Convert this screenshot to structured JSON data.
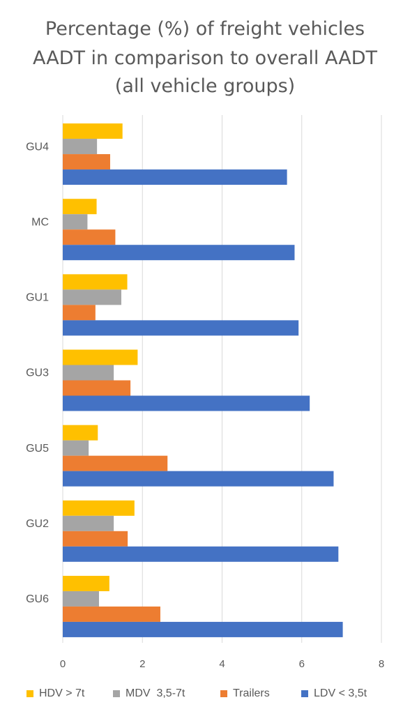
{
  "chart_data": {
    "type": "bar",
    "orientation": "horizontal",
    "title_lines": [
      "Percentage (%) of freight vehicles",
      "AADT in comparison to overall AADT",
      "(all vehicle groups)"
    ],
    "categories": [
      "GU4",
      "MC",
      "GU1",
      "GU3",
      "GU5",
      "GU2",
      "GU6"
    ],
    "series": [
      {
        "name": "HDV > 7t",
        "color": "#FFC000",
        "values": [
          1.5,
          0.85,
          1.62,
          1.88,
          0.88,
          1.8,
          1.17
        ]
      },
      {
        "name": "MDV  3,5-7t",
        "color": "#A5A5A5",
        "values": [
          0.86,
          0.62,
          1.47,
          1.28,
          0.65,
          1.28,
          0.91
        ]
      },
      {
        "name": "Trailers",
        "color": "#ED7D31",
        "values": [
          1.19,
          1.32,
          0.82,
          1.7,
          2.63,
          1.63,
          2.45
        ]
      },
      {
        "name": "LDV < 3,5t",
        "color": "#4472C4",
        "values": [
          5.63,
          5.82,
          5.92,
          6.2,
          6.8,
          6.92,
          7.03
        ]
      }
    ],
    "x_ticks": [
      "0",
      "2",
      "4",
      "6",
      "8"
    ],
    "xlim": [
      0,
      8
    ],
    "grid": "vertical",
    "legend": "bottom"
  }
}
